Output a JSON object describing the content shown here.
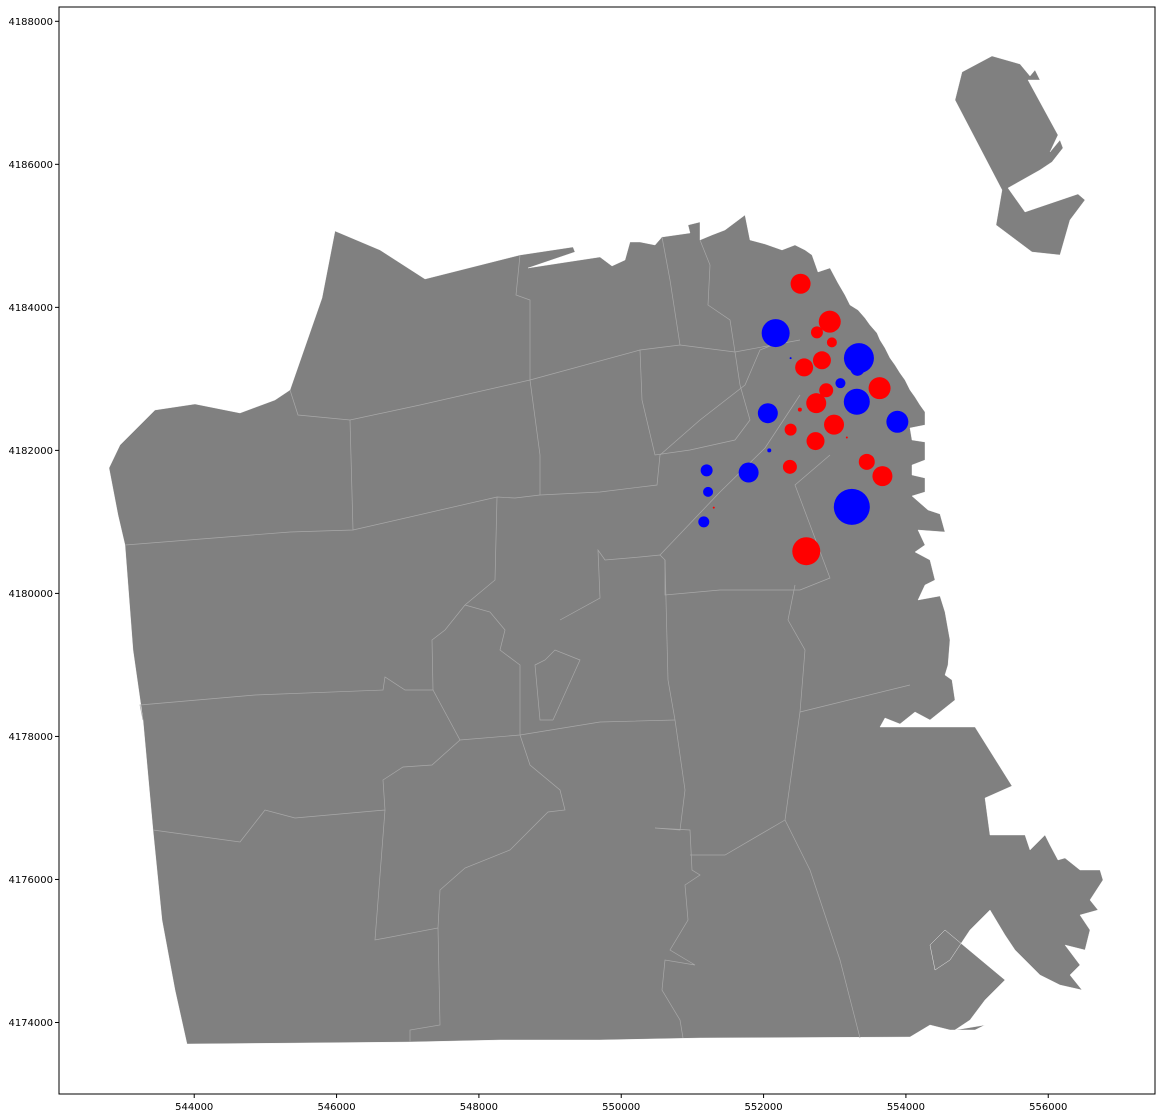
{
  "chart_data": {
    "type": "scatter",
    "title": "",
    "xlabel": "",
    "ylabel": "",
    "xlim": [
      542100,
      557500
    ],
    "ylim": [
      4173000,
      4188200
    ],
    "x_ticks": [
      544000,
      546000,
      548000,
      550000,
      552000,
      554000,
      556000
    ],
    "y_ticks": [
      4174000,
      4176000,
      4178000,
      4180000,
      4182000,
      4184000,
      4186000,
      4188000
    ],
    "basemap": "neighborhood polygons",
    "land_color": "#808080",
    "grid": false,
    "legend": "none",
    "series": [
      {
        "color": "#ff0000",
        "points": [
          {
            "x": 552520,
            "y": 4184330,
            "size": 20
          },
          {
            "x": 552930,
            "y": 4183800,
            "size": 22
          },
          {
            "x": 552750,
            "y": 4183650,
            "size": 12
          },
          {
            "x": 552960,
            "y": 4183510,
            "size": 10
          },
          {
            "x": 552820,
            "y": 4183260,
            "size": 18
          },
          {
            "x": 552570,
            "y": 4183160,
            "size": 18
          },
          {
            "x": 553630,
            "y": 4182870,
            "size": 22
          },
          {
            "x": 552880,
            "y": 4182840,
            "size": 14
          },
          {
            "x": 552740,
            "y": 4182660,
            "size": 20
          },
          {
            "x": 552510,
            "y": 4182570,
            "size": 4
          },
          {
            "x": 552990,
            "y": 4182360,
            "size": 20
          },
          {
            "x": 552380,
            "y": 4182290,
            "size": 12
          },
          {
            "x": 552730,
            "y": 4182130,
            "size": 18
          },
          {
            "x": 553170,
            "y": 4182180,
            "size": 2
          },
          {
            "x": 553450,
            "y": 4181840,
            "size": 16
          },
          {
            "x": 552370,
            "y": 4181770,
            "size": 14
          },
          {
            "x": 553670,
            "y": 4181640,
            "size": 20
          },
          {
            "x": 551300,
            "y": 4181200,
            "size": 2
          },
          {
            "x": 552600,
            "y": 4180590,
            "size": 28
          }
        ]
      },
      {
        "color": "#0000ff",
        "points": [
          {
            "x": 552170,
            "y": 4183640,
            "size": 28
          },
          {
            "x": 553340,
            "y": 4183290,
            "size": 30
          },
          {
            "x": 552380,
            "y": 4183290,
            "size": 2
          },
          {
            "x": 553320,
            "y": 4183140,
            "size": 14
          },
          {
            "x": 553080,
            "y": 4182940,
            "size": 10
          },
          {
            "x": 553310,
            "y": 4182680,
            "size": 26
          },
          {
            "x": 553880,
            "y": 4182400,
            "size": 22
          },
          {
            "x": 552060,
            "y": 4182520,
            "size": 20
          },
          {
            "x": 552080,
            "y": 4182000,
            "size": 4
          },
          {
            "x": 551200,
            "y": 4181720,
            "size": 12
          },
          {
            "x": 551790,
            "y": 4181690,
            "size": 20
          },
          {
            "x": 551220,
            "y": 4181420,
            "size": 10
          },
          {
            "x": 553240,
            "y": 4181210,
            "size": 36
          },
          {
            "x": 551160,
            "y": 4181000,
            "size": 11
          }
        ]
      }
    ]
  }
}
